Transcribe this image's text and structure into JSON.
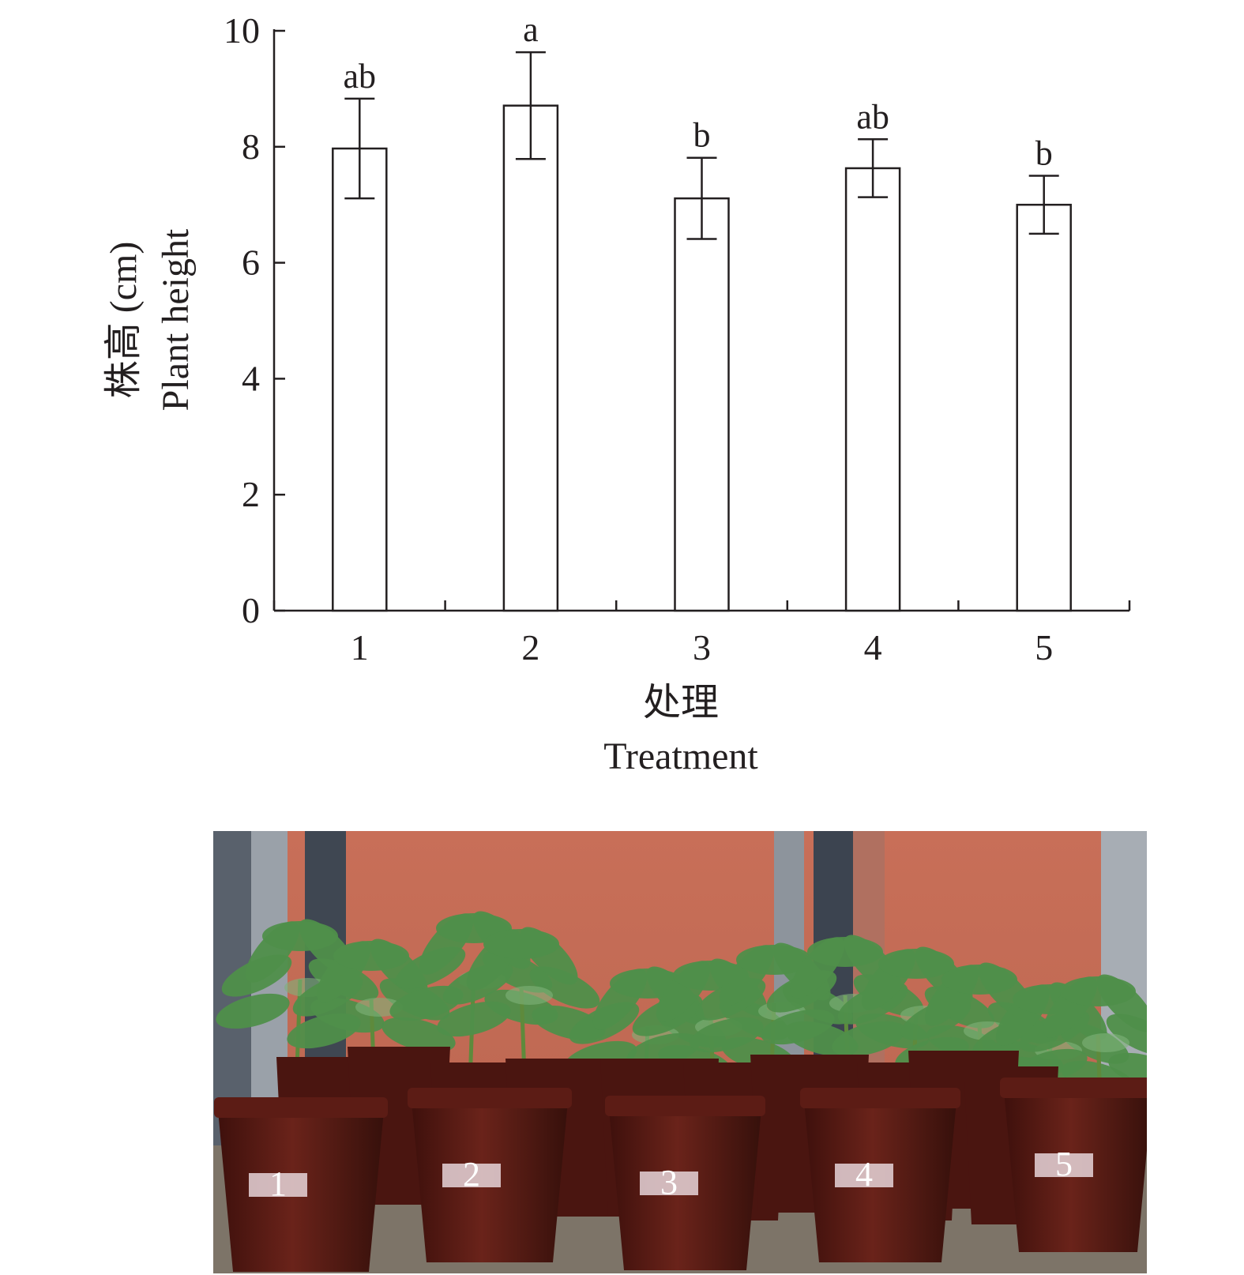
{
  "chart_data": {
    "type": "bar",
    "categories": [
      "1",
      "2",
      "3",
      "4",
      "5"
    ],
    "values": [
      7.97,
      8.71,
      7.11,
      7.63,
      7.0
    ],
    "error": [
      0.86,
      0.92,
      0.7,
      0.5,
      0.5
    ],
    "significance": [
      "ab",
      "a",
      "b",
      "ab",
      "b"
    ],
    "ylim": [
      0,
      10
    ],
    "yticks": [
      "0",
      "2",
      "4",
      "6",
      "8",
      "10"
    ],
    "ylabel_cn": "株高 (cm)",
    "ylabel_en": "Plant height",
    "xlabel_cn": "处理",
    "xlabel_en": "Treatment",
    "grid": false,
    "legend": "none"
  },
  "photo": {
    "pot_labels": [
      "1",
      "2",
      "3",
      "4",
      "5"
    ],
    "colors": {
      "wall": "#c8715b",
      "pot": "#5a1a14",
      "leaf": "#4f8f4a",
      "pole": "#6b7480",
      "shelf": "#7d7468"
    }
  }
}
